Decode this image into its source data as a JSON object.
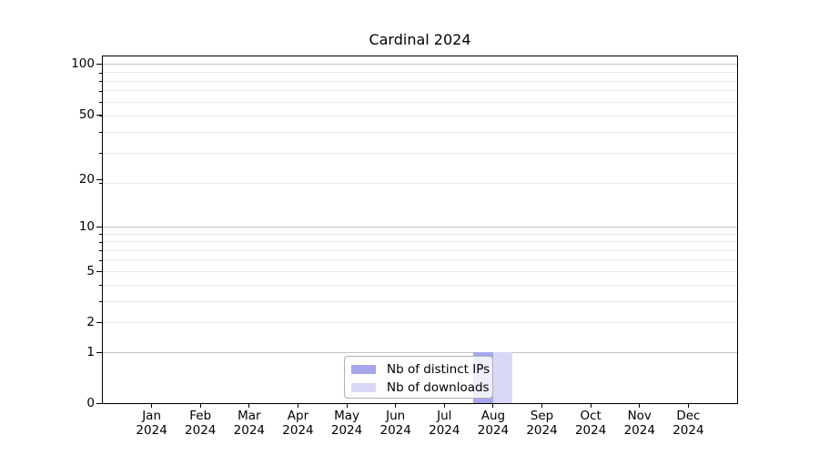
{
  "chart_data": {
    "type": "bar",
    "title": "Cardinal 2024",
    "categories": [
      "Jan",
      "Feb",
      "Mar",
      "Apr",
      "May",
      "Jun",
      "Jul",
      "Aug",
      "Sep",
      "Oct",
      "Nov",
      "Dec"
    ],
    "x_tick_year": "2024",
    "series": [
      {
        "name": "Nb of distinct IPs",
        "color": "#a6a6ec",
        "values": [
          0,
          0,
          0,
          0,
          0,
          0,
          0,
          1,
          0,
          0,
          0,
          0
        ]
      },
      {
        "name": "Nb of downloads",
        "color": "#d9d9f7",
        "values": [
          0,
          0,
          0,
          0,
          0,
          0,
          0,
          1,
          0,
          0,
          0,
          0
        ]
      }
    ],
    "y_axis": {
      "scale": "log10(value+1)",
      "ticks": [
        0,
        1,
        2,
        5,
        10,
        20,
        50,
        100
      ],
      "major_gridlines": [
        1,
        10,
        100
      ],
      "minor_gridlines": [
        2,
        3,
        4,
        5,
        6,
        7,
        8,
        9,
        19,
        29,
        39,
        49,
        59,
        69,
        79,
        89
      ],
      "range": [
        0,
        111
      ]
    },
    "xlabel": "",
    "ylabel": "",
    "grid": true,
    "legend_position": "lower center"
  }
}
